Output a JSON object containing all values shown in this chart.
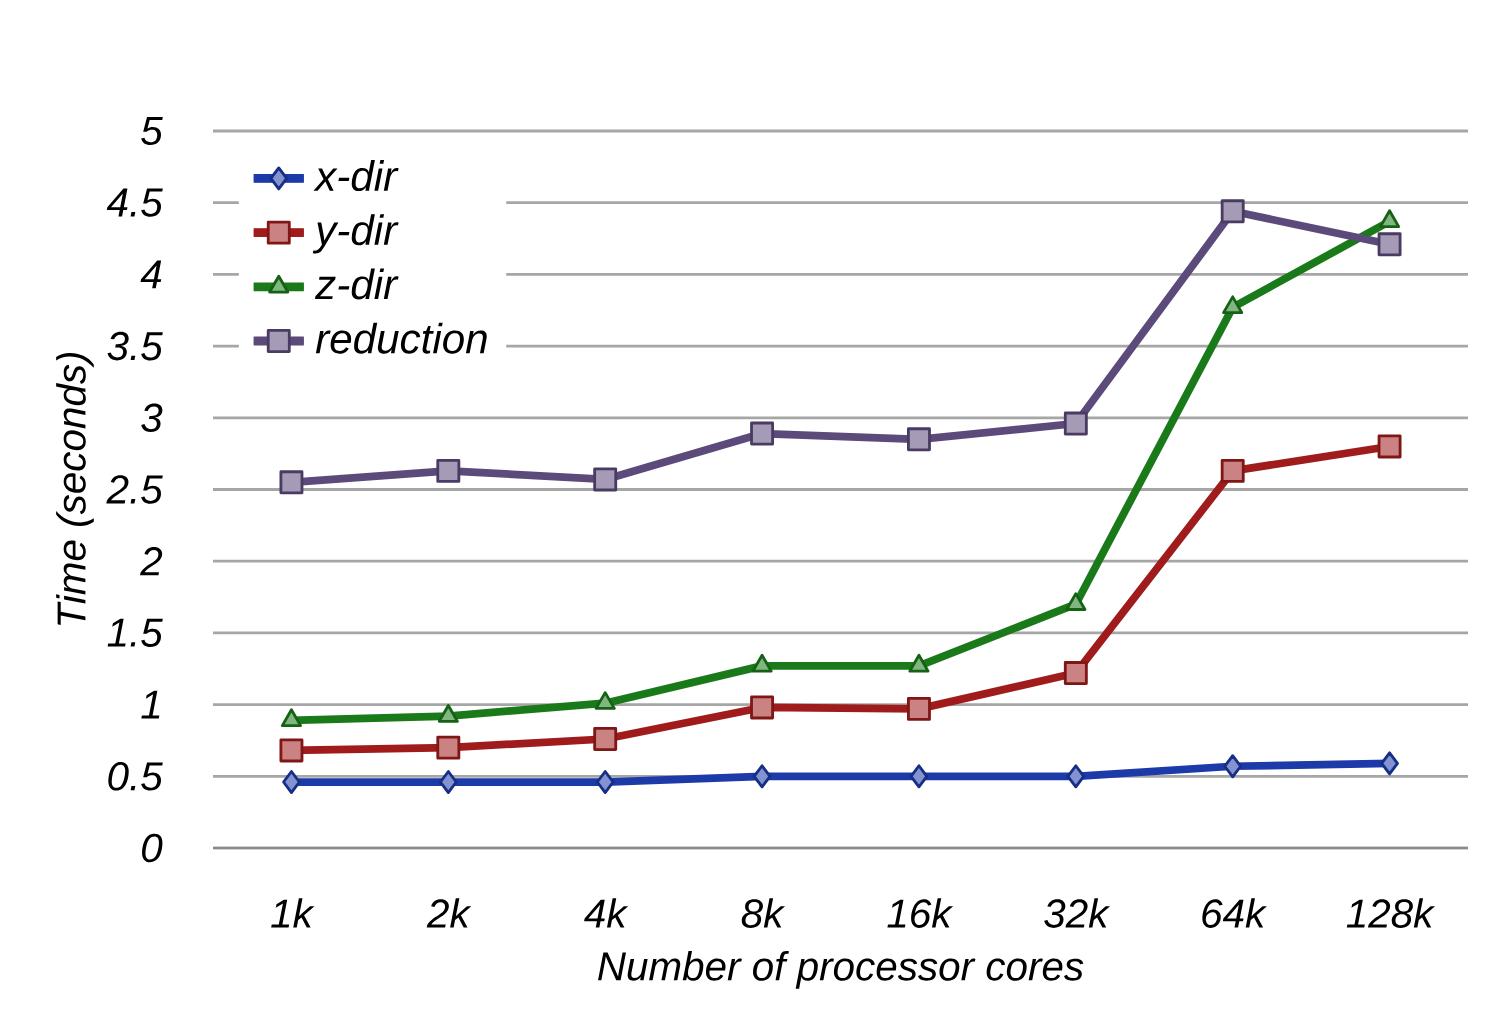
{
  "chart_data": {
    "type": "line",
    "xlabel": "Number of processor cores",
    "ylabel": "Time (seconds)",
    "categories": [
      "1k",
      "2k",
      "4k",
      "8k",
      "16k",
      "32k",
      "64k",
      "128k"
    ],
    "series": [
      {
        "name": "x-dir",
        "color": "#1c3aa8",
        "marker": "diamond",
        "values": [
          0.46,
          0.46,
          0.46,
          0.5,
          0.5,
          0.5,
          0.57,
          0.59
        ]
      },
      {
        "name": "y-dir",
        "color": "#a01c1c",
        "marker": "square",
        "values": [
          0.68,
          0.7,
          0.76,
          0.98,
          0.97,
          1.22,
          2.63,
          2.8
        ]
      },
      {
        "name": "z-dir",
        "color": "#1a7a1a",
        "marker": "triangle",
        "values": [
          0.89,
          0.92,
          1.01,
          1.27,
          1.27,
          1.7,
          3.77,
          4.37
        ]
      },
      {
        "name": "reduction",
        "color": "#5c4a7a",
        "marker": "square",
        "values": [
          2.55,
          2.63,
          2.57,
          2.89,
          2.85,
          2.96,
          4.44,
          4.21
        ]
      }
    ],
    "ylim": [
      0,
      5
    ],
    "yticks": [
      0,
      0.5,
      1,
      1.5,
      2,
      2.5,
      3,
      3.5,
      4,
      4.5,
      5
    ],
    "grid": "y",
    "legend": "top left",
    "line_style": "solid"
  }
}
